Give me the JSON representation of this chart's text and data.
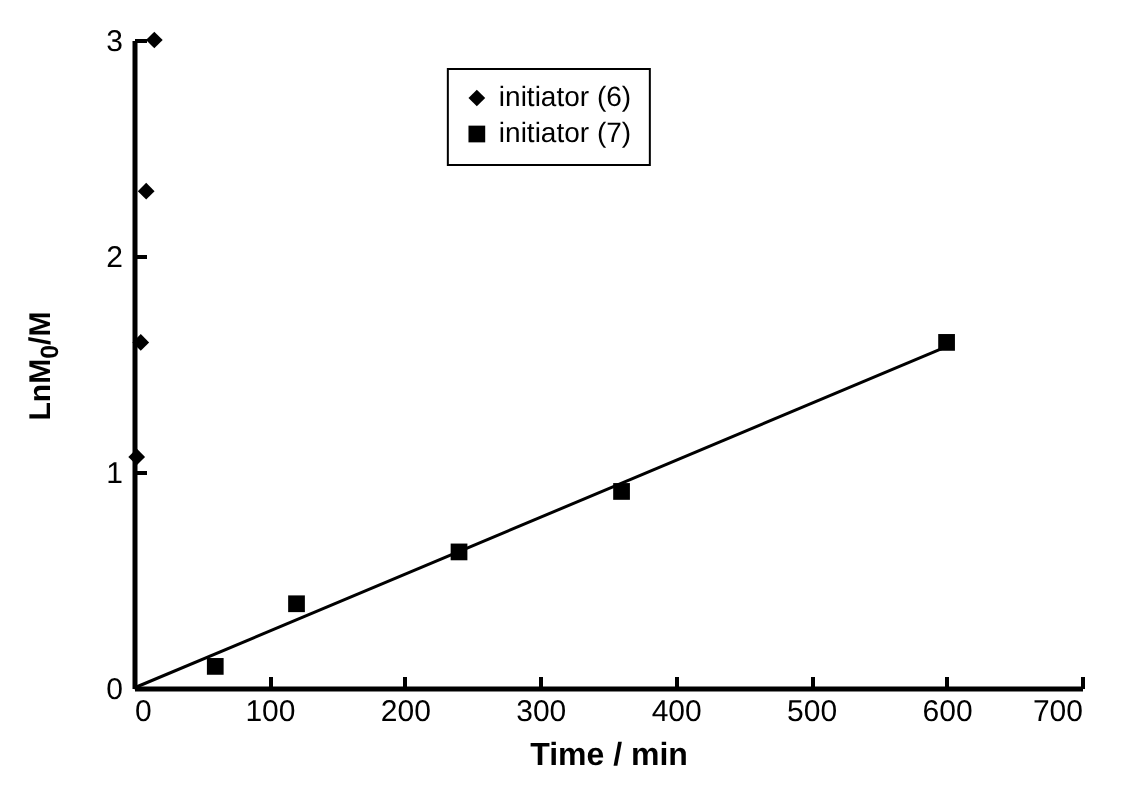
{
  "chart_data": {
    "type": "scatter",
    "xlabel": "Time / min",
    "ylabel": "LnM$_{0}$/M",
    "xlim": [
      0,
      700
    ],
    "xticks": [
      0,
      100,
      200,
      300,
      400,
      500,
      600,
      700
    ],
    "ylim": [
      0,
      3
    ],
    "yticks": [
      0,
      1,
      2,
      3
    ],
    "grid": false,
    "legend": "top",
    "series": [
      {
        "name": "initiator (6)",
        "color": "#000000",
        "marker": "diamond",
        "x": [
          2,
          5,
          9,
          15
        ],
        "values": [
          1.07,
          1.6,
          2.3,
          3.0
        ]
      },
      {
        "name": "initiator (7)",
        "color": "#000000",
        "marker": "square",
        "x": [
          60,
          120,
          240,
          360,
          600
        ],
        "values": [
          0.1,
          0.39,
          0.63,
          0.91,
          1.6
        ]
      },
      {
        "type": "line",
        "color": "#000000",
        "marker": "none",
        "x": [
          0,
          600
        ],
        "values": [
          0,
          1.58
        ]
      }
    ]
  }
}
